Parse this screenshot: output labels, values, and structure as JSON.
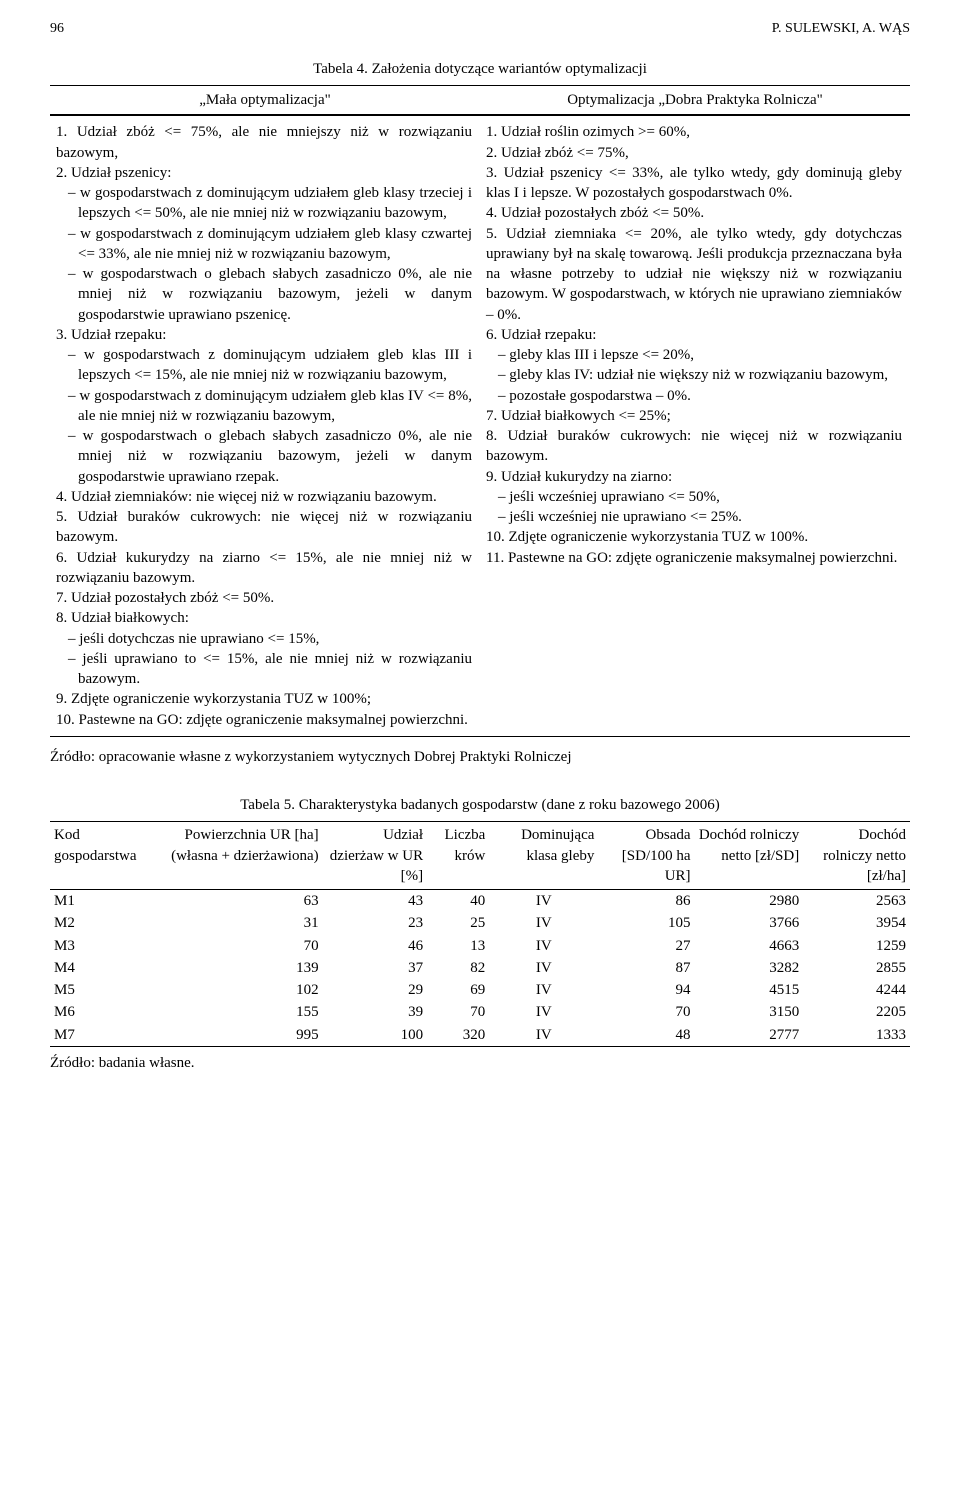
{
  "header": {
    "page_num": "96",
    "authors": "P. SULEWSKI, A. WĄS"
  },
  "table4": {
    "caption": "Tabela 4. Założenia dotyczące wariantów optymalizacji",
    "left_head": "„Mała optymalizacja\"",
    "right_head": "Optymalizacja „Dobra Praktyka Rolnicza\"",
    "left": {
      "i1": "1. Udział zbóż <= 75%, ale nie mniejszy niż w rozwiązaniu bazowym,",
      "i2": "2. Udział pszenicy:",
      "i2a": "w gospodarstwach z dominującym udziałem gleb klasy trzeciej i lepszych <= 50%, ale nie mniej niż w rozwiązaniu bazowym,",
      "i2b": "w gospodarstwach z dominującym udziałem gleb klasy czwartej <= 33%, ale nie mniej niż w rozwiązaniu bazowym,",
      "i2c": "w gospodarstwach o glebach słabych zasadniczo 0%, ale nie mniej niż w rozwiązaniu bazowym, jeżeli w danym gospodarstwie uprawiano pszenicę.",
      "i3": "3. Udział rzepaku:",
      "i3a": "w gospodarstwach z dominującym udziałem gleb klas III i lepszych <= 15%, ale nie mniej niż w rozwiązaniu bazowym,",
      "i3b": "w gospodarstwach z dominującym udziałem gleb klas IV <= 8%, ale nie mniej niż w rozwiązaniu bazowym,",
      "i3c": "w gospodarstwach o glebach słabych zasadniczo 0%, ale nie mniej niż w rozwiązaniu bazowym, jeżeli w danym gospodarstwie uprawiano rzepak.",
      "i4": "4. Udział ziemniaków: nie więcej niż w rozwiązaniu bazowym.",
      "i5": "5. Udział buraków cukrowych: nie więcej niż w rozwiązaniu bazowym.",
      "i6": "6. Udział kukurydzy na ziarno <= 15%, ale nie mniej niż w rozwiązaniu bazowym.",
      "i7": "7. Udział pozostałych zbóż <= 50%.",
      "i8": "8. Udział białkowych:",
      "i8a": "jeśli dotychczas nie uprawiano <= 15%,",
      "i8b": "jeśli uprawiano to <= 15%, ale nie mniej niż w rozwiązaniu bazowym.",
      "i9": "9. Zdjęte ograniczenie wykorzystania TUZ w 100%;",
      "i10": "10. Pastewne na GO: zdjęte ograniczenie maksymalnej powierzchni."
    },
    "right": {
      "i1": "1. Udział roślin ozimych >= 60%,",
      "i2": "2. Udział zbóż <= 75%,",
      "i3": "3. Udział pszenicy <= 33%, ale tylko wtedy, gdy dominują gleby klas I i lepsze. W pozostałych gospodarstwach 0%.",
      "i4": "4. Udział pozostałych zbóż <= 50%.",
      "i5": "5. Udział ziemniaka <= 20%, ale tylko wtedy, gdy dotychczas uprawiany był na skalę towarową. Jeśli produkcja przeznaczana była na własne potrzeby to udział nie większy niż w rozwiązaniu bazowym. W gospodarstwach, w których nie uprawiano ziemniaków – 0%.",
      "i6": "6. Udział rzepaku:",
      "i6a": "gleby klas III  i lepsze <= 20%,",
      "i6b": "gleby klas IV: udział nie większy niż w rozwiązaniu bazowym,",
      "i6c": "pozostałe gospodarstwa – 0%.",
      "i7": "7. Udział białkowych <= 25%;",
      "i8": "8. Udział buraków cukrowych: nie więcej niż w rozwiązaniu bazowym.",
      "i9": "9. Udział kukurydzy na ziarno:",
      "i9a": "jeśli wcześniej uprawiano <= 50%,",
      "i9b": "jeśli wcześniej nie uprawiano <= 25%.",
      "i10": "10. Zdjęte ograniczenie wykorzystania TUZ w 100%.",
      "i11": "11. Pastewne na GO: zdjęte ograniczenie maksymalnej powierzchni."
    },
    "source": "Źródło: opracowanie własne z wykorzystaniem wytycznych Dobrej Praktyki Rolniczej"
  },
  "table5": {
    "caption": "Tabela 5. Charakterystyka badanych gospodarstw (dane z roku bazowego 2006)",
    "columns": {
      "c1": "Kod gospodarstwa",
      "c2": "Powierzchnia UR [ha] (własna + dzierżawiona)",
      "c3": "Udział dzierżaw w UR [%]",
      "c4": "Liczba krów",
      "c5": "Dominująca klasa gleby",
      "c6": "Obsada [SD/100 ha UR]",
      "c7": "Dochód rolniczy netto [zł/SD]",
      "c8": "Dochód rolniczy netto [zł/ha]"
    },
    "rows": [
      [
        "M1",
        "63",
        "43",
        "40",
        "IV",
        "86",
        "2980",
        "2563"
      ],
      [
        "M2",
        "31",
        "23",
        "25",
        "IV",
        "105",
        "3766",
        "3954"
      ],
      [
        "M3",
        "70",
        "46",
        "13",
        "IV",
        "27",
        "4663",
        "1259"
      ],
      [
        "M4",
        "139",
        "37",
        "82",
        "IV",
        "87",
        "3282",
        "2855"
      ],
      [
        "M5",
        "102",
        "29",
        "69",
        "IV",
        "94",
        "4515",
        "4244"
      ],
      [
        "M6",
        "155",
        "39",
        "70",
        "IV",
        "70",
        "3150",
        "2205"
      ],
      [
        "M7",
        "995",
        "100",
        "320",
        "IV",
        "48",
        "2777",
        "1333"
      ]
    ],
    "source": "Źródło: badania własne."
  }
}
